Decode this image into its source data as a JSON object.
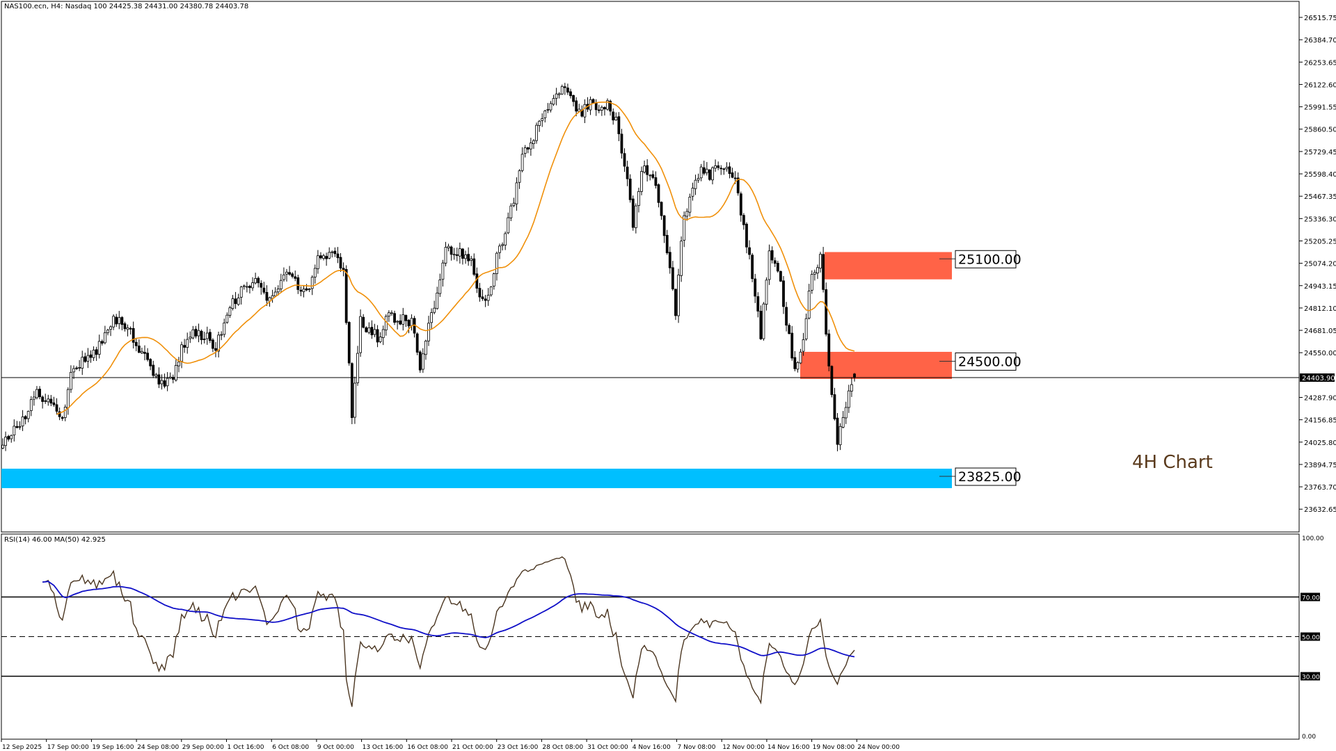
{
  "header": {
    "title": "NAS100.ecn, H4:  Nasdaq 100  24425.38 24431.00 24380.78 24403.78"
  },
  "annotation": "4H Chart",
  "rsi_header": "RSI(14) 46.00 MA(50) 42.925",
  "colors": {
    "resistance_zone": "#ff6347",
    "support_zone": "#00bfff",
    "ma_line": "#f0900a",
    "rsi_line": "#4a3520",
    "rsi_ma_line": "#1010c8",
    "annotation": "#5a3a1c"
  },
  "chart_data": {
    "type": "candlestick",
    "symbol": "NAS100.ecn",
    "timeframe": "H4",
    "last_bar": {
      "open": 24425.38,
      "high": 24431.0,
      "low": 24380.78,
      "close": 24403.78
    },
    "current_price": 24403.9,
    "current_price_label": "24403.90",
    "ylim": [
      23570,
      26580
    ],
    "y_ticks": [
      "26515.75",
      "26384.70",
      "26253.65",
      "26122.60",
      "25991.55",
      "25860.50",
      "25729.45",
      "25598.40",
      "25467.35",
      "25336.30",
      "25205.25",
      "25074.20",
      "24943.15",
      "24812.10",
      "24681.05",
      "24550.00",
      "24287.90",
      "24156.85",
      "24025.80",
      "23894.75",
      "23763.70",
      "23632.65"
    ],
    "x_ticks": [
      "12 Sep 2025",
      "17 Sep 00:00",
      "19 Sep 16:00",
      "24 Sep 08:00",
      "29 Sep 00:00",
      "1 Oct 16:00",
      "6 Oct 08:00",
      "9 Oct 00:00",
      "13 Oct 16:00",
      "16 Oct 08:00",
      "21 Oct 00:00",
      "23 Oct 16:00",
      "28 Oct 08:00",
      "31 Oct 00:00",
      "4 Nov 16:00",
      "7 Nov 08:00",
      "12 Nov 00:00",
      "14 Nov 16:00",
      "19 Nov 08:00",
      "24 Nov 00:00"
    ],
    "approx_closes": [
      24008,
      24070,
      24134,
      24220,
      24309,
      24285,
      24259,
      24159,
      24460,
      24485,
      24510,
      24560,
      24680,
      24736,
      24736,
      24670,
      24585,
      24510,
      24410,
      24359,
      24410,
      24585,
      24660,
      24648,
      24635,
      24585,
      24690,
      24850,
      24911,
      24936,
      24961,
      24836,
      24920,
      24980,
      25012,
      24886,
      24911,
      25137,
      25120,
      25125,
      25012,
      24200,
      24730,
      24680,
      24640,
      24745,
      24761,
      24745,
      24720,
      24450,
      24711,
      24911,
      25163,
      25145,
      25130,
      25112,
      24886,
      24886,
      25112,
      25263,
      25450,
      25680,
      25790,
      25890,
      26000,
      26090,
      26100,
      26000,
      25960,
      26015,
      25940,
      26000,
      25915,
      25664,
      25313,
      25614,
      25614,
      25463,
      25163,
      24800,
      25363,
      25488,
      25614,
      25580,
      25640,
      25640,
      25550,
      25300,
      24990,
      24660,
      25112,
      25062,
      24711,
      24460,
      24610,
      25012,
      25112,
      24460,
      24000,
      24259,
      24404
    ],
    "zones": [
      {
        "label": "25100.00",
        "level": 25100,
        "from": 24980,
        "to": 25140,
        "type": "resistance"
      },
      {
        "label": "24500.00",
        "level": 24500,
        "from": 24396,
        "to": 24555,
        "type": "resistance"
      },
      {
        "label": "23825.00",
        "level": 23825,
        "from": 23756,
        "to": 23870,
        "type": "support"
      }
    ],
    "ma_period": 20,
    "rsi": {
      "period": 14,
      "ma_period": 50,
      "value": "46.00",
      "ma_value": "42.925",
      "ylim": [
        0,
        100
      ],
      "levels": [
        70,
        50,
        30
      ],
      "y_ticks": [
        "100.00",
        "70.00",
        "50.00",
        "30.00",
        "0.00"
      ]
    }
  }
}
